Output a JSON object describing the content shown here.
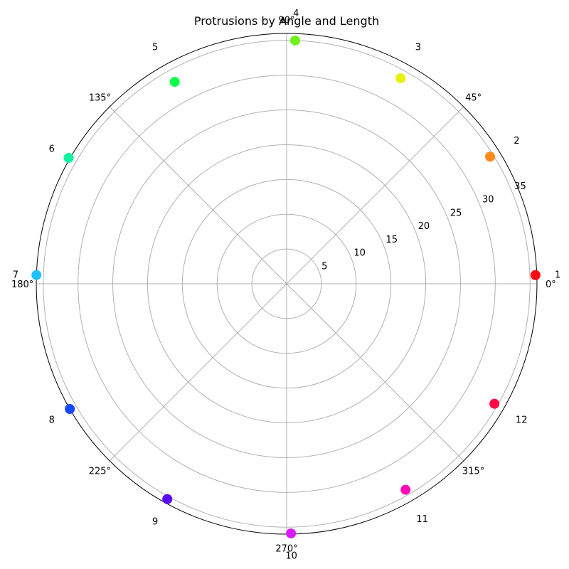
{
  "chart_data": {
    "type": "scatter",
    "projection": "polar",
    "title": "Protrusions by Angle and Length",
    "angle_ticks": [
      "0°",
      "45°",
      "90°",
      "135°",
      "180°",
      "225°",
      "270°",
      "315°"
    ],
    "angle_tick_values": [
      0,
      45,
      90,
      135,
      180,
      225,
      270,
      315
    ],
    "radial_ticks": [
      "5",
      "10",
      "15",
      "20",
      "25",
      "30",
      "35"
    ],
    "radial_tick_values": [
      5,
      10,
      15,
      20,
      25,
      30,
      35
    ],
    "rlim": [
      0,
      36
    ],
    "grid": true,
    "marker_size": 10,
    "points": [
      {
        "label": "1",
        "angle": 2,
        "r": 35.8,
        "color": "#ff0a12"
      },
      {
        "label": "2",
        "angle": 32,
        "r": 34.5,
        "color": "#ff8a1a"
      },
      {
        "label": "3",
        "angle": 61,
        "r": 33.8,
        "color": "#e6f20a"
      },
      {
        "label": "4",
        "angle": 88,
        "r": 35.0,
        "color": "#6ef21a"
      },
      {
        "label": "5",
        "angle": 119,
        "r": 33.2,
        "color": "#0dff4a"
      },
      {
        "label": "6",
        "angle": 150,
        "r": 36.2,
        "color": "#12f2a0"
      },
      {
        "label": "7",
        "angle": 178,
        "r": 36.0,
        "color": "#1ec2ff"
      },
      {
        "label": "8",
        "angle": 210,
        "r": 36.0,
        "color": "#1448ff"
      },
      {
        "label": "9",
        "angle": 241,
        "r": 35.4,
        "color": "#5a0af2"
      },
      {
        "label": "10",
        "angle": 271,
        "r": 35.9,
        "color": "#d81aff"
      },
      {
        "label": "11",
        "angle": 300,
        "r": 34.2,
        "color": "#ff0ab8"
      },
      {
        "label": "12",
        "angle": 330,
        "r": 34.5,
        "color": "#ff0a46"
      }
    ]
  }
}
